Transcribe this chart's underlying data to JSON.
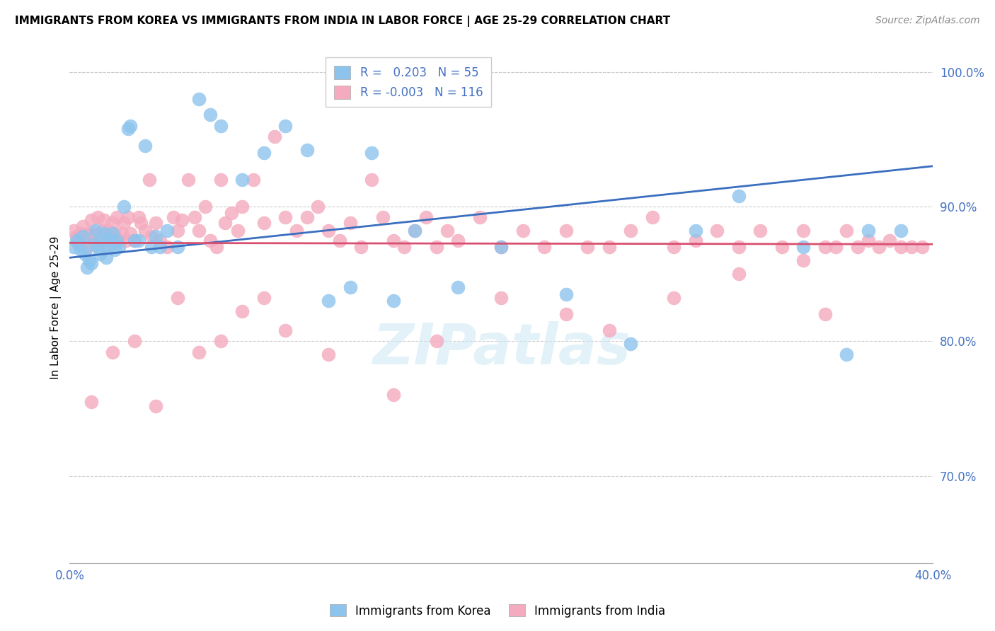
{
  "title": "IMMIGRANTS FROM KOREA VS IMMIGRANTS FROM INDIA IN LABOR FORCE | AGE 25-29 CORRELATION CHART",
  "source": "Source: ZipAtlas.com",
  "ylabel": "In Labor Force | Age 25-29",
  "xlim": [
    0.0,
    0.4
  ],
  "ylim": [
    0.635,
    1.015
  ],
  "yticks": [
    0.7,
    0.8,
    0.9,
    1.0
  ],
  "yticklabels": [
    "70.0%",
    "80.0%",
    "90.0%",
    "100.0%"
  ],
  "korea_R": 0.203,
  "korea_N": 55,
  "india_R": -0.003,
  "india_N": 116,
  "korea_color": "#8DC4ED",
  "india_color": "#F4AABF",
  "korea_line_color": "#3A6EBF",
  "india_line_color": "#D85070",
  "watermark": "ZIPatlas",
  "korea_x": [
    0.002,
    0.003,
    0.004,
    0.005,
    0.006,
    0.007,
    0.008,
    0.009,
    0.01,
    0.011,
    0.012,
    0.013,
    0.014,
    0.015,
    0.016,
    0.017,
    0.018,
    0.019,
    0.02,
    0.021,
    0.022,
    0.023,
    0.025,
    0.027,
    0.028,
    0.03,
    0.032,
    0.035,
    0.038,
    0.04,
    0.042,
    0.045,
    0.05,
    0.06,
    0.065,
    0.07,
    0.08,
    0.09,
    0.1,
    0.11,
    0.12,
    0.13,
    0.14,
    0.15,
    0.16,
    0.18,
    0.2,
    0.23,
    0.26,
    0.29,
    0.31,
    0.34,
    0.36,
    0.37,
    0.385
  ],
  "korea_y": [
    0.87,
    0.875,
    0.872,
    0.868,
    0.878,
    0.865,
    0.855,
    0.86,
    0.858,
    0.872,
    0.882,
    0.87,
    0.865,
    0.875,
    0.88,
    0.862,
    0.87,
    0.875,
    0.88,
    0.868,
    0.875,
    0.87,
    0.9,
    0.958,
    0.96,
    0.875,
    0.875,
    0.945,
    0.87,
    0.878,
    0.87,
    0.882,
    0.87,
    0.98,
    0.968,
    0.96,
    0.92,
    0.94,
    0.96,
    0.942,
    0.83,
    0.84,
    0.94,
    0.83,
    0.882,
    0.84,
    0.87,
    0.835,
    0.798,
    0.882,
    0.908,
    0.87,
    0.79,
    0.882,
    0.882
  ],
  "india_x": [
    0.002,
    0.003,
    0.004,
    0.005,
    0.006,
    0.007,
    0.008,
    0.009,
    0.01,
    0.011,
    0.012,
    0.013,
    0.014,
    0.015,
    0.016,
    0.017,
    0.018,
    0.019,
    0.02,
    0.021,
    0.022,
    0.023,
    0.024,
    0.025,
    0.026,
    0.027,
    0.028,
    0.03,
    0.032,
    0.033,
    0.035,
    0.037,
    0.038,
    0.04,
    0.042,
    0.045,
    0.048,
    0.05,
    0.052,
    0.055,
    0.058,
    0.06,
    0.063,
    0.065,
    0.068,
    0.07,
    0.072,
    0.075,
    0.078,
    0.08,
    0.085,
    0.09,
    0.095,
    0.1,
    0.105,
    0.11,
    0.115,
    0.12,
    0.125,
    0.13,
    0.135,
    0.14,
    0.145,
    0.15,
    0.155,
    0.16,
    0.165,
    0.17,
    0.175,
    0.18,
    0.19,
    0.2,
    0.21,
    0.22,
    0.23,
    0.24,
    0.25,
    0.26,
    0.27,
    0.28,
    0.29,
    0.3,
    0.31,
    0.32,
    0.33,
    0.34,
    0.35,
    0.355,
    0.36,
    0.365,
    0.37,
    0.375,
    0.38,
    0.385,
    0.39,
    0.395,
    0.34,
    0.31,
    0.28,
    0.35,
    0.25,
    0.23,
    0.2,
    0.17,
    0.15,
    0.12,
    0.1,
    0.09,
    0.08,
    0.07,
    0.06,
    0.05,
    0.04,
    0.03,
    0.02,
    0.01
  ],
  "india_y": [
    0.882,
    0.878,
    0.875,
    0.88,
    0.885,
    0.875,
    0.87,
    0.88,
    0.89,
    0.875,
    0.88,
    0.892,
    0.875,
    0.882,
    0.89,
    0.87,
    0.882,
    0.878,
    0.888,
    0.88,
    0.892,
    0.875,
    0.88,
    0.888,
    0.875,
    0.892,
    0.88,
    0.875,
    0.892,
    0.888,
    0.882,
    0.92,
    0.878,
    0.888,
    0.875,
    0.87,
    0.892,
    0.882,
    0.89,
    0.92,
    0.892,
    0.882,
    0.9,
    0.875,
    0.87,
    0.92,
    0.888,
    0.895,
    0.882,
    0.9,
    0.92,
    0.888,
    0.952,
    0.892,
    0.882,
    0.892,
    0.9,
    0.882,
    0.875,
    0.888,
    0.87,
    0.92,
    0.892,
    0.875,
    0.87,
    0.882,
    0.892,
    0.87,
    0.882,
    0.875,
    0.892,
    0.87,
    0.882,
    0.87,
    0.882,
    0.87,
    0.87,
    0.882,
    0.892,
    0.87,
    0.875,
    0.882,
    0.87,
    0.882,
    0.87,
    0.882,
    0.87,
    0.87,
    0.882,
    0.87,
    0.875,
    0.87,
    0.875,
    0.87,
    0.87,
    0.87,
    0.86,
    0.85,
    0.832,
    0.82,
    0.808,
    0.82,
    0.832,
    0.8,
    0.76,
    0.79,
    0.808,
    0.832,
    0.822,
    0.8,
    0.792,
    0.832,
    0.752,
    0.8,
    0.792,
    0.755
  ]
}
